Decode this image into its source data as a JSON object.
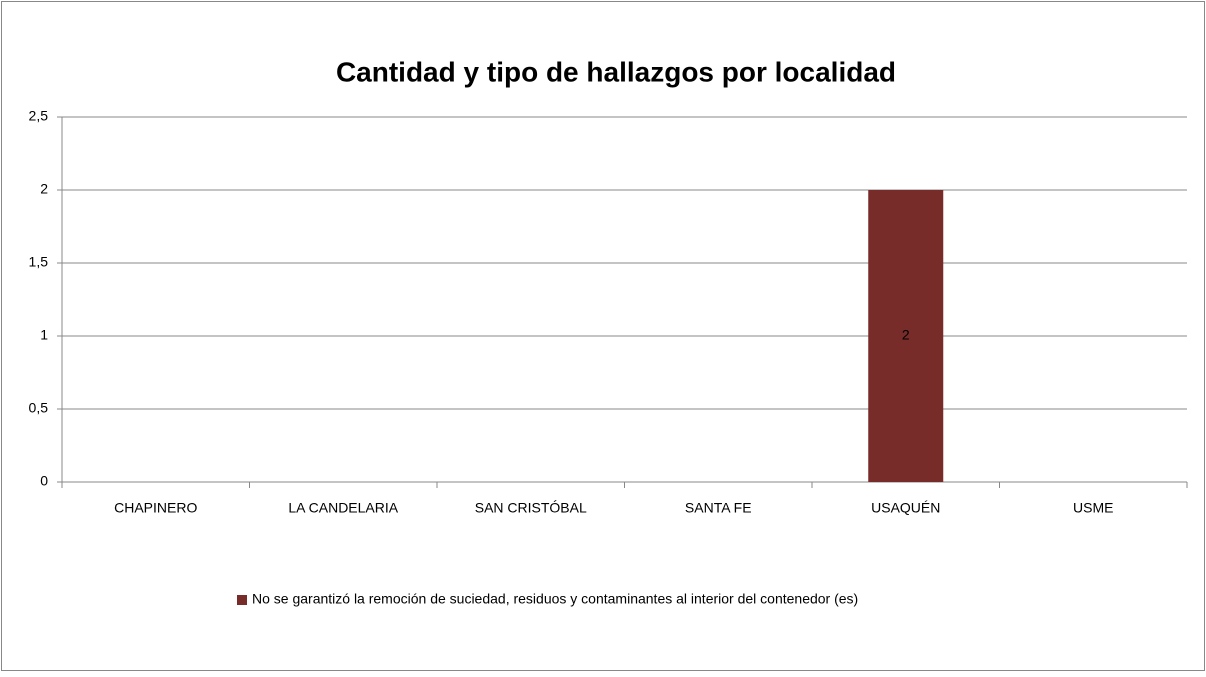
{
  "chart_data": {
    "type": "bar",
    "title": "Cantidad y tipo de hallazgos por localidad",
    "categories": [
      "CHAPINERO",
      "LA CANDELARIA",
      "SAN CRISTÓBAL",
      "SANTA FE",
      "USAQUÉN",
      "USME"
    ],
    "series": [
      {
        "name": "No se garantizó la remoción de suciedad, residuos y contaminantes al interior del contenedor (es)",
        "color": "#772c2a",
        "values": [
          null,
          null,
          null,
          null,
          2,
          null
        ]
      }
    ],
    "ylim": [
      0,
      2.5
    ],
    "yticks": [
      0,
      {
        "value": 0.5,
        "label": "0,5"
      },
      1,
      {
        "value": 1.5,
        "label": "1,5"
      },
      2,
      {
        "value": 2.5,
        "label": "2,5"
      }
    ],
    "grid": true,
    "legend": "bottom"
  }
}
